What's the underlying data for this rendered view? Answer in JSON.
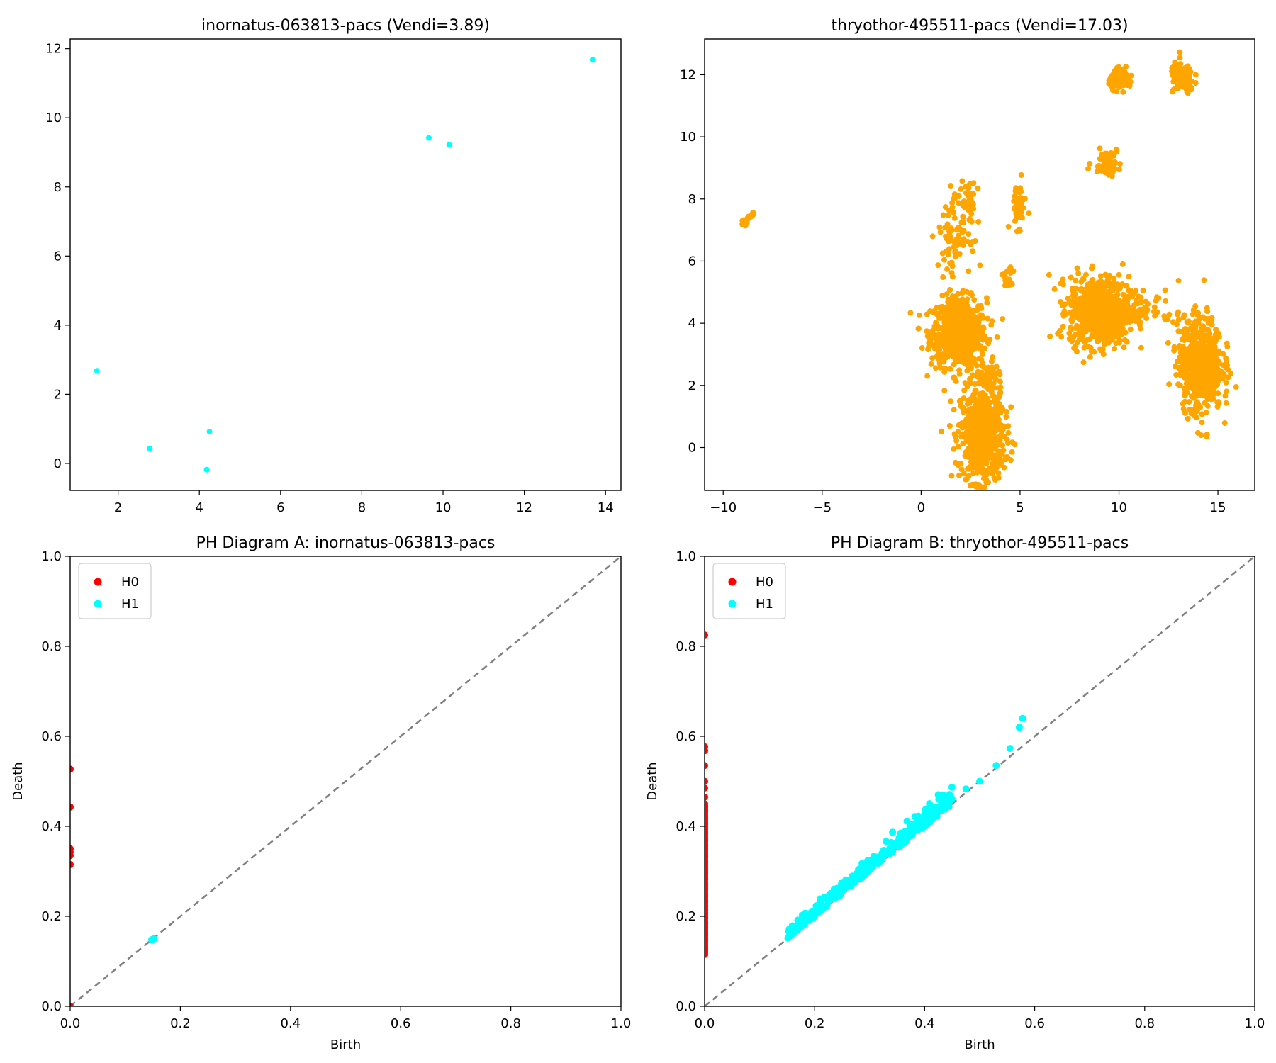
{
  "chart_data": [
    {
      "type": "scatter",
      "title": "inornatus-063813-pacs (Vendi=3.89)",
      "xlabel": "",
      "ylabel": "",
      "xlim": [
        0.82,
        14.38
      ],
      "ylim": [
        -0.78,
        12.28
      ],
      "xticks": [
        2,
        4,
        6,
        8,
        10,
        12,
        14
      ],
      "yticks": [
        0,
        2,
        4,
        6,
        8,
        10,
        12
      ],
      "grid": false,
      "series": [
        {
          "color": "#00FFFF",
          "points": [
            [
              1.48,
              2.68
            ],
            [
              2.78,
              0.43
            ],
            [
              4.25,
              0.92
            ],
            [
              4.18,
              -0.18
            ],
            [
              9.65,
              9.42
            ],
            [
              10.15,
              9.22
            ],
            [
              13.68,
              11.68
            ]
          ]
        }
      ]
    },
    {
      "type": "scatter",
      "title": "thryothor-495511-pacs (Vendi=17.03)",
      "xlabel": "",
      "ylabel": "",
      "xlim": [
        -10.94,
        16.86
      ],
      "ylim": [
        -1.38,
        13.15
      ],
      "xticks": [
        -10,
        -5,
        0,
        5,
        10,
        15
      ],
      "yticks": [
        0,
        2,
        4,
        6,
        8,
        10,
        12
      ],
      "grid": false,
      "series": [
        {
          "color": "#FFA500",
          "clusters": [
            {
              "cx": 1.9,
              "cy": 3.7,
              "sx": 0.7,
              "sy": 0.55,
              "n": 700
            },
            {
              "cx": 3.1,
              "cy": 0.4,
              "sx": 0.55,
              "sy": 0.75,
              "n": 650
            },
            {
              "cx": 9.0,
              "cy": 4.4,
              "sx": 0.75,
              "sy": 0.55,
              "n": 750
            },
            {
              "cx": 14.1,
              "cy": 2.7,
              "sx": 0.55,
              "sy": 0.75,
              "n": 650
            },
            {
              "cx": 10.1,
              "cy": 11.85,
              "sx": 0.3,
              "sy": 0.15,
              "n": 90
            },
            {
              "cx": 13.2,
              "cy": 11.9,
              "sx": 0.3,
              "sy": 0.25,
              "n": 110
            },
            {
              "cx": 9.4,
              "cy": 9.2,
              "sx": 0.35,
              "sy": 0.2,
              "n": 70
            },
            {
              "cx": 1.7,
              "cy": 6.9,
              "sx": 0.4,
              "sy": 0.6,
              "n": 80
            },
            {
              "cx": 2.4,
              "cy": 7.8,
              "sx": 0.2,
              "sy": 0.4,
              "n": 40
            },
            {
              "cx": 4.9,
              "cy": 7.8,
              "sx": 0.2,
              "sy": 0.35,
              "n": 50
            },
            {
              "cx": 4.4,
              "cy": 5.4,
              "sx": 0.15,
              "sy": 0.2,
              "n": 20
            },
            {
              "cx": 3.3,
              "cy": 2.2,
              "sx": 0.3,
              "sy": 0.3,
              "n": 60
            },
            {
              "cx": 11.0,
              "cy": 4.5,
              "sx": 0.3,
              "sy": 0.3,
              "n": 40
            },
            {
              "cx": 12.2,
              "cy": 4.4,
              "sx": 0.3,
              "sy": 0.3,
              "n": 15
            }
          ],
          "segments": [
            {
              "from": [
                -9.0,
                7.15
              ],
              "to": [
                -8.5,
                7.55
              ],
              "n": 30
            }
          ]
        }
      ]
    },
    {
      "type": "scatter",
      "title": "PH Diagram A: inornatus-063813-pacs",
      "xlabel": "Birth",
      "ylabel": "Death",
      "xlim": [
        0,
        1
      ],
      "ylim": [
        0,
        1
      ],
      "xticks": [
        0.0,
        0.2,
        0.4,
        0.6,
        0.8,
        1.0
      ],
      "yticks": [
        0.0,
        0.2,
        0.4,
        0.6,
        0.8,
        1.0
      ],
      "grid": false,
      "legend": "top-left",
      "diagonal": true,
      "series": [
        {
          "name": "H0",
          "color": "#FF0000",
          "points": [
            [
              0,
              0.527
            ],
            [
              0,
              0.443
            ],
            [
              0,
              0.35
            ],
            [
              0,
              0.343
            ],
            [
              0,
              0.335
            ],
            [
              0,
              0.315
            ],
            [
              0,
              0.0
            ]
          ]
        },
        {
          "name": "H1",
          "color": "#00FFFF",
          "points": [
            [
              0.148,
              0.148
            ],
            [
              0.152,
              0.15
            ]
          ]
        }
      ]
    },
    {
      "type": "scatter",
      "title": "PH Diagram B: thryothor-495511-pacs",
      "xlabel": "Birth",
      "ylabel": "Death",
      "xlim": [
        0,
        1
      ],
      "ylim": [
        0,
        1
      ],
      "xticks": [
        0.0,
        0.2,
        0.4,
        0.6,
        0.8,
        1.0
      ],
      "yticks": [
        0.0,
        0.2,
        0.4,
        0.6,
        0.8,
        1.0
      ],
      "grid": false,
      "legend": "top-left",
      "diagonal": true,
      "series": [
        {
          "name": "H0",
          "color": "#FF0000",
          "points": [
            [
              0,
              0.825
            ],
            [
              0,
              0.577
            ],
            [
              0,
              0.568
            ],
            [
              0,
              0.535
            ],
            [
              0,
              0.5
            ],
            [
              0,
              0.485
            ],
            [
              0,
              0.465
            ]
          ],
          "range": {
            "x": 0,
            "from": 0.115,
            "to": 0.45,
            "n": 90
          }
        },
        {
          "name": "H1",
          "color": "#00FFFF",
          "points": [
            [
              0.578,
              0.64
            ],
            [
              0.572,
              0.62
            ],
            [
              0.555,
              0.573
            ],
            [
              0.53,
              0.535
            ],
            [
              0.5,
              0.5
            ],
            [
              0.475,
              0.483
            ],
            [
              0.44,
              0.462
            ]
          ],
          "band": {
            "from": 0.15,
            "to": 0.45,
            "n": 320
          }
        }
      ]
    }
  ]
}
